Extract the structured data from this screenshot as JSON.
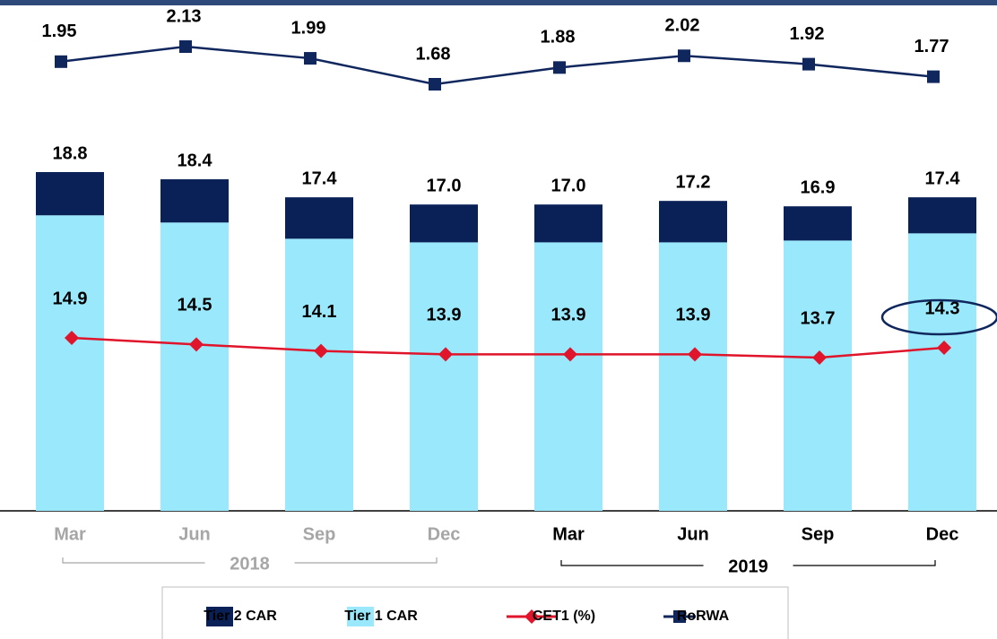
{
  "chart_data": {
    "type": "bar",
    "category_groups": [
      {
        "name": "2018",
        "color": "#a6a6a6",
        "categories": [
          "Mar",
          "Jun",
          "Sep",
          "Dec"
        ]
      },
      {
        "name": "2019",
        "color": "#000000",
        "categories": [
          "Mar",
          "Jun",
          "Sep",
          "Dec"
        ]
      }
    ],
    "series": [
      {
        "name": "Tier 2 CAR",
        "type": "bar",
        "color": "#0a2158",
        "values": [
          2.4,
          2.4,
          2.3,
          2.1,
          2.1,
          2.3,
          1.9,
          2.0
        ]
      },
      {
        "name": "Tier 1 CAR",
        "type": "bar",
        "color": "#99e8fb",
        "values": [
          16.4,
          16.0,
          15.1,
          14.9,
          14.9,
          14.9,
          15.0,
          15.4
        ]
      },
      {
        "name": "CET1 (%)",
        "type": "line",
        "marker": "diamond",
        "color": "#e0142b",
        "values": [
          14.9,
          14.5,
          14.1,
          13.9,
          13.9,
          13.9,
          13.7,
          14.3
        ]
      },
      {
        "name": "RoRWA",
        "type": "line",
        "marker": "square",
        "color": "#10275e",
        "values": [
          1.95,
          2.13,
          1.99,
          1.68,
          1.88,
          2.02,
          1.92,
          1.77
        ]
      }
    ],
    "total_labels": [
      "18.8",
      "18.4",
      "17.4",
      "17.0",
      "17.0",
      "17.2",
      "16.9",
      "17.4"
    ],
    "cet1_labels": [
      "14.9",
      "14.5",
      "14.1",
      "13.9",
      "13.9",
      "13.9",
      "13.7",
      "14.3"
    ]
  }
}
